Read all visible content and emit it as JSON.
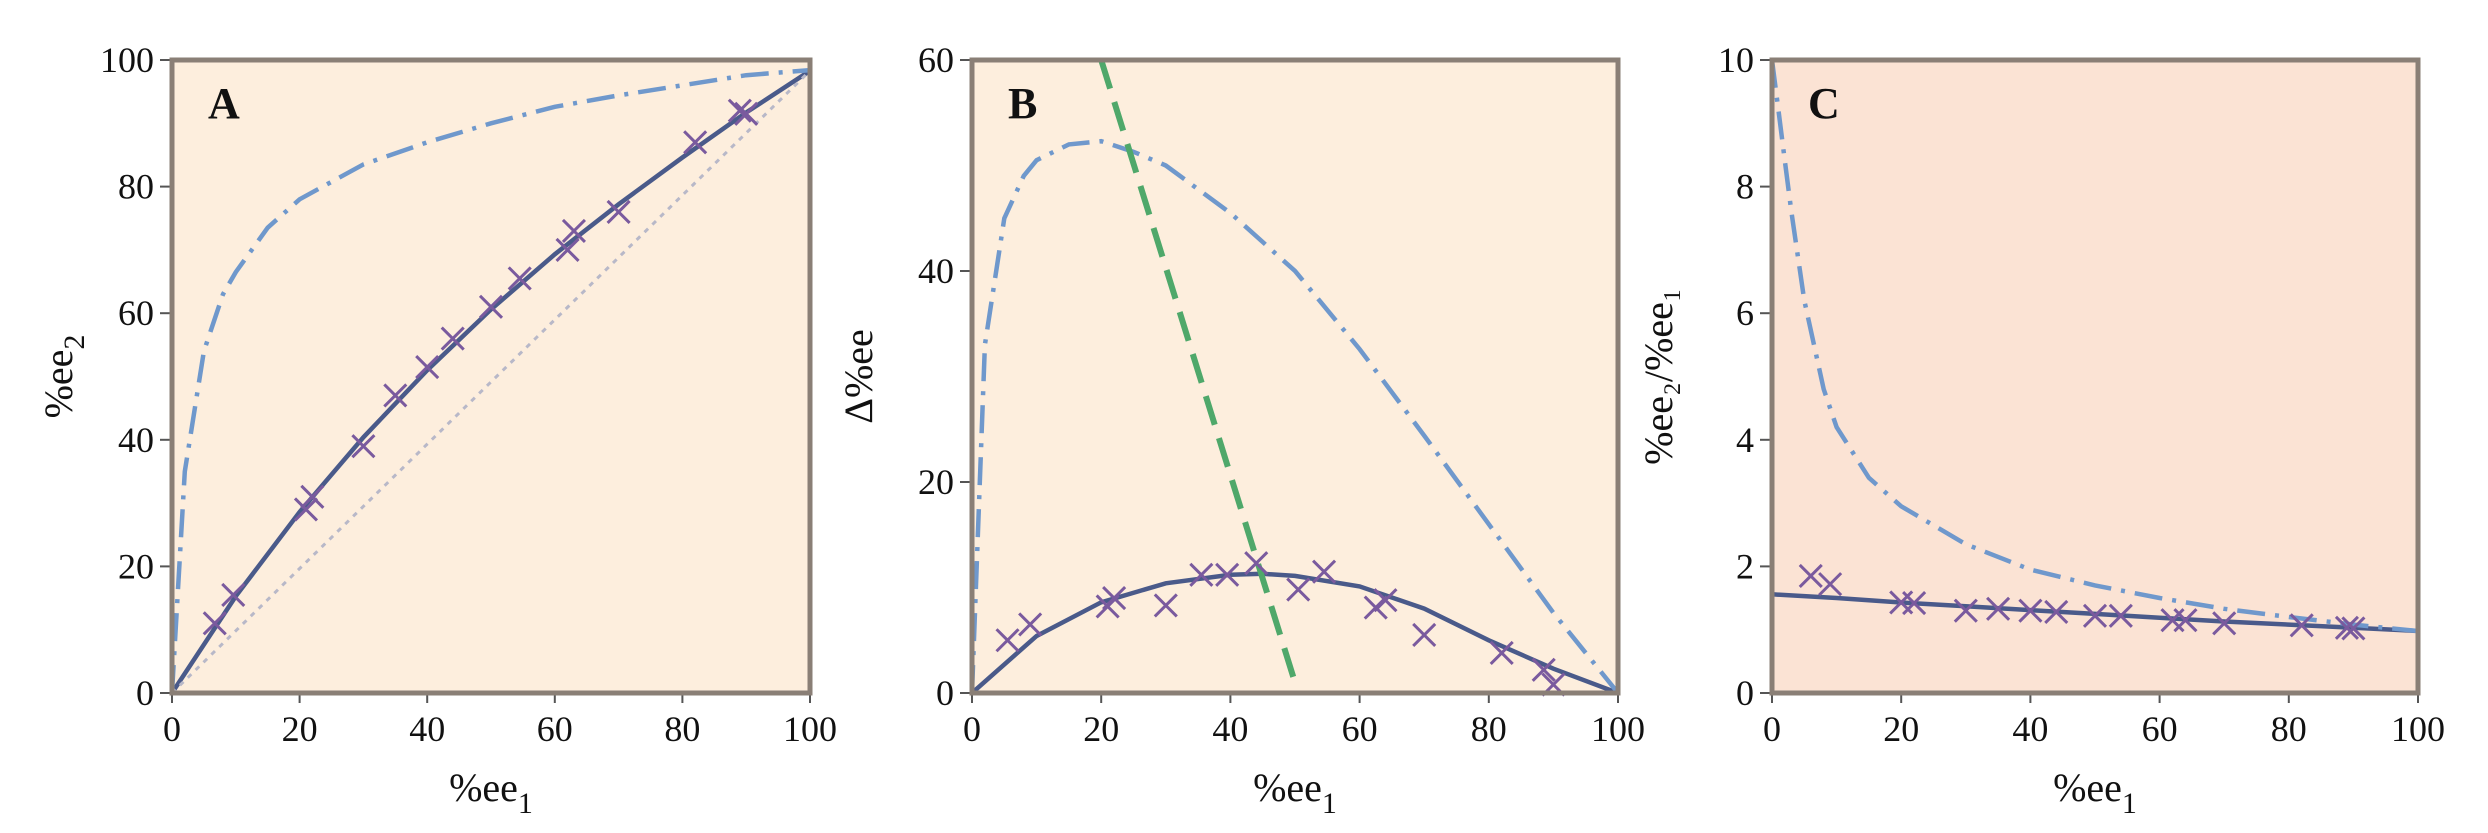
{
  "chart_data": [
    {
      "type": "line",
      "panel_label": "A",
      "xlabel": "%ee",
      "xlabel_sub": "1",
      "ylabel": "%ee",
      "ylabel_sub": "2",
      "xlim": [
        0,
        100
      ],
      "ylim": [
        0,
        100
      ],
      "xticks": [
        "0",
        "20",
        "40",
        "60",
        "80",
        "100"
      ],
      "yticks": [
        "0",
        "20",
        "40",
        "60",
        "80",
        "100"
      ],
      "background": "#fdeedd",
      "points": {
        "x": [
          6.7,
          9.6,
          21,
          22,
          30,
          35,
          40,
          44,
          50,
          54.5,
          62,
          63,
          70,
          82,
          89,
          90
        ],
        "y": [
          11,
          15.5,
          29,
          31,
          39,
          47,
          51.5,
          56,
          61,
          65.5,
          70,
          73,
          76,
          87,
          92,
          91.5
        ]
      },
      "curves": [
        {
          "style": "solid",
          "color": "#4a5a8a",
          "x": [
            0,
            10,
            20,
            30,
            40,
            50,
            60,
            70,
            80,
            90,
            100
          ],
          "y": [
            0,
            15.3,
            28.6,
            40.4,
            51,
            60.6,
            69.3,
            77.2,
            84.6,
            91.7,
            98.3
          ]
        },
        {
          "style": "dashdot",
          "color": "#6f98cc",
          "x": [
            0,
            2,
            5,
            8,
            10,
            15,
            20,
            30,
            40,
            50,
            60,
            70,
            80,
            90,
            100
          ],
          "y": [
            0,
            35,
            54,
            63,
            66.5,
            73.5,
            78,
            83.5,
            87,
            90,
            92.6,
            94.4,
            96,
            97.6,
            98.4
          ]
        },
        {
          "style": "dotted",
          "color": "#b8b8c8",
          "x": [
            0,
            100
          ],
          "y": [
            0,
            98.3
          ]
        }
      ]
    },
    {
      "type": "line",
      "panel_label": "B",
      "xlabel": "%ee",
      "xlabel_sub": "1",
      "ylabel": "Δ%ee",
      "ylabel_sub": "",
      "xlim": [
        0,
        100
      ],
      "ylim": [
        0,
        60
      ],
      "xticks": [
        "0",
        "20",
        "40",
        "60",
        "80",
        "100"
      ],
      "yticks": [
        "0",
        "20",
        "40",
        "60"
      ],
      "background": "#fdeedd",
      "points": {
        "x": [
          5.5,
          9,
          21,
          22,
          30,
          35.5,
          39.5,
          44,
          50.5,
          54.5,
          62.5,
          64,
          70,
          82,
          88.5,
          90
        ],
        "y": [
          5,
          6.5,
          8.2,
          9,
          8.3,
          11.2,
          11.2,
          12.3,
          9.8,
          11.5,
          8.1,
          8.8,
          5.5,
          3.8,
          2.2,
          0.8
        ]
      },
      "curves": [
        {
          "style": "solid",
          "color": "#4a5a8a",
          "x": [
            0,
            10,
            20,
            30,
            40,
            45,
            50,
            60,
            70,
            80,
            90,
            100
          ],
          "y": [
            0,
            5.4,
            8.6,
            10.4,
            11.2,
            11.3,
            11.1,
            10.1,
            8,
            5,
            2.3,
            0
          ]
        },
        {
          "style": "dashdot",
          "color": "#6f98cc",
          "x": [
            0,
            2,
            5,
            8,
            10,
            15,
            20,
            25,
            30,
            40,
            50,
            60,
            70,
            80,
            90,
            100
          ],
          "y": [
            0,
            33,
            45,
            49,
            50.5,
            52,
            52.3,
            51.3,
            50,
            45.5,
            40,
            32.6,
            24.4,
            16,
            7.6,
            0
          ]
        },
        {
          "style": "dashed",
          "color": "#4fa86a",
          "x": [
            20,
            50
          ],
          "y": [
            60,
            1
          ]
        }
      ]
    },
    {
      "type": "line",
      "panel_label": "C",
      "xlabel": "%ee",
      "xlabel_sub": "1",
      "ylabel": "%ee₂/%ee₁",
      "ylabel_sub": "",
      "xlim": [
        0,
        100
      ],
      "ylim": [
        0,
        10
      ],
      "xticks": [
        "0",
        "20",
        "40",
        "60",
        "80",
        "100"
      ],
      "yticks": [
        "0",
        "2",
        "4",
        "6",
        "8",
        "10"
      ],
      "background": "#fbe3d4",
      "points": {
        "x": [
          6,
          9,
          20,
          22,
          30,
          35,
          40,
          44,
          50,
          54,
          62,
          64,
          70,
          82,
          89,
          90
        ],
        "y": [
          1.85,
          1.72,
          1.43,
          1.42,
          1.3,
          1.33,
          1.3,
          1.28,
          1.22,
          1.22,
          1.15,
          1.15,
          1.1,
          1.07,
          1.03,
          1.02
        ]
      },
      "curves": [
        {
          "style": "solid",
          "color": "#4a5a8a",
          "x": [
            0,
            10,
            20,
            30,
            40,
            50,
            60,
            70,
            80,
            90,
            100
          ],
          "y": [
            1.56,
            1.5,
            1.43,
            1.37,
            1.31,
            1.25,
            1.19,
            1.13,
            1.08,
            1.03,
            0.98
          ]
        },
        {
          "style": "dashdot",
          "color": "#6f98cc",
          "x": [
            0,
            1,
            2,
            3,
            5,
            8,
            10,
            15,
            20,
            30,
            40,
            50,
            60,
            70,
            80,
            90,
            100
          ],
          "y": [
            10,
            9.2,
            8.4,
            7.6,
            6.2,
            4.8,
            4.2,
            3.4,
            2.95,
            2.35,
            1.95,
            1.7,
            1.5,
            1.33,
            1.2,
            1.08,
            0.98
          ]
        }
      ]
    }
  ]
}
